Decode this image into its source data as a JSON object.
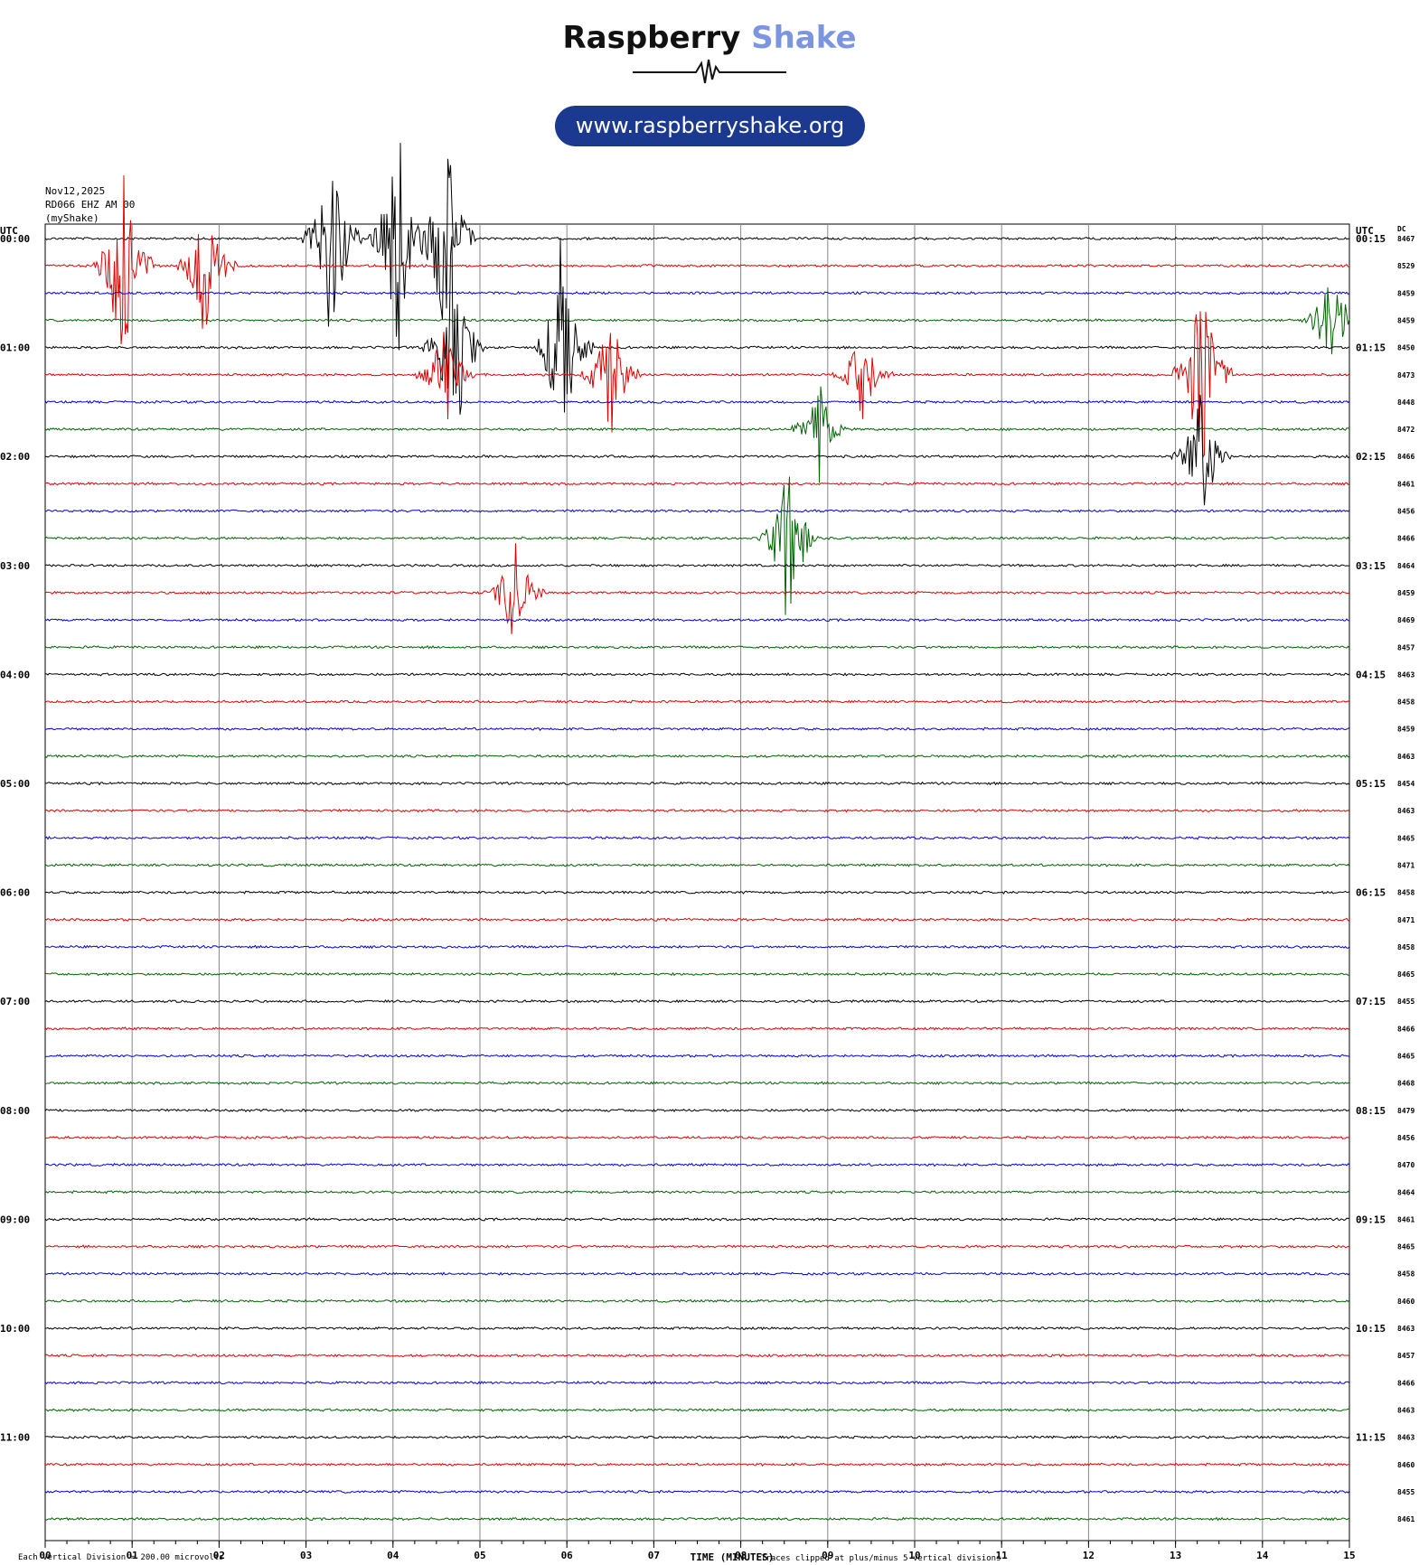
{
  "header": {
    "brand_name": "Raspberry",
    "brand_accent": "Shake",
    "url": "www.raspberryshake.org",
    "date": "Nov12,2025",
    "station": "RD066 EHZ AM 00",
    "network": "(myShake)"
  },
  "chart_data": {
    "type": "line",
    "title": "",
    "left_axis_label": "UTC",
    "right_axis_label": "UTC",
    "dc_label": "DC",
    "xlabel": "TIME (MINUTES)",
    "xlim": [
      0,
      15
    ],
    "x_ticks": [
      "00",
      "01",
      "02",
      "03",
      "04",
      "05",
      "06",
      "07",
      "08",
      "09",
      "10",
      "11",
      "12",
      "13",
      "14",
      "15"
    ],
    "grid": true,
    "trace_colors": [
      "#000000",
      "#e00000",
      "#0000dd",
      "#006400"
    ],
    "left_hour_labels": [
      "00:00",
      "01:00",
      "02:00",
      "03:00",
      "04:00",
      "05:00",
      "06:00",
      "07:00",
      "08:00",
      "09:00",
      "10:00",
      "11:00"
    ],
    "right_hour_labels": [
      "00:15",
      "01:15",
      "02:15",
      "03:15",
      "04:15",
      "05:15",
      "06:15",
      "07:15",
      "08:15",
      "09:15",
      "10:15",
      "11:15"
    ],
    "dc_offsets": [
      8467,
      8529,
      8459,
      8459,
      8450,
      8473,
      8448,
      8472,
      8466,
      8461,
      8456,
      8466,
      8464,
      8459,
      8469,
      8457,
      8463,
      8458,
      8459,
      8463,
      8454,
      8463,
      8465,
      8471,
      8458,
      8471,
      8458,
      8465,
      8455,
      8466,
      8465,
      8468,
      8479,
      8456,
      8470,
      8464,
      8461,
      8465,
      8458,
      8460,
      8463,
      8457,
      8466,
      8463,
      8463,
      8460,
      8455,
      8461
    ],
    "footer_scale": "Each Vertical Division =  200.00 microvolts",
    "footer_clip": "Traces clipped at plus/minus 5 vertical divisions",
    "events": [
      {
        "trace": 1,
        "minute": 0.9,
        "amplitude": 5
      },
      {
        "trace": 1,
        "minute": 1.85,
        "amplitude": 3.5
      },
      {
        "trace": 0,
        "minute": 3.3,
        "amplitude": 5
      },
      {
        "trace": 0,
        "minute": 4.05,
        "amplitude": 5
      },
      {
        "trace": 0,
        "minute": 4.6,
        "amplitude": 5
      },
      {
        "trace": 4,
        "minute": 4.7,
        "amplitude": 5
      },
      {
        "trace": 5,
        "minute": 4.6,
        "amplitude": 2.5
      },
      {
        "trace": 4,
        "minute": 5.95,
        "amplitude": 5
      },
      {
        "trace": 5,
        "minute": 6.5,
        "amplitude": 3
      },
      {
        "trace": 7,
        "minute": 8.9,
        "amplitude": 2
      },
      {
        "trace": 5,
        "minute": 9.4,
        "amplitude": 2
      },
      {
        "trace": 11,
        "minute": 8.55,
        "amplitude": 4
      },
      {
        "trace": 13,
        "minute": 5.4,
        "amplitude": 2.5
      },
      {
        "trace": 3,
        "minute": 14.8,
        "amplitude": 2.5
      },
      {
        "trace": 5,
        "minute": 13.3,
        "amplitude": 5
      },
      {
        "trace": 8,
        "minute": 13.3,
        "amplitude": 3
      }
    ]
  }
}
